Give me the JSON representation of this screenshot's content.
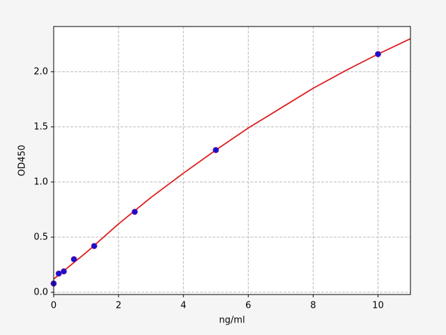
{
  "chart_data": {
    "type": "scatter",
    "xlabel": "ng/ml",
    "ylabel": "OD450",
    "xlim": [
      0,
      11
    ],
    "ylim": [
      -0.02,
      2.41
    ],
    "xticks": [
      0,
      2,
      4,
      6,
      8,
      10
    ],
    "yticks": [
      {
        "value": 0,
        "label": "0.0"
      },
      {
        "value": 0.5,
        "label": "0.5"
      },
      {
        "value": 1,
        "label": "1.0"
      },
      {
        "value": 1.5,
        "label": "1.5"
      },
      {
        "value": 2,
        "label": "2.0"
      }
    ],
    "grid": true,
    "series": [
      {
        "type": "line",
        "color": "#dd1c1c",
        "x": [
          0,
          1,
          2,
          3,
          4,
          5,
          6,
          7,
          8,
          9,
          10,
          11
        ],
        "values": [
          0.12,
          0.36,
          0.62,
          0.86,
          1.08,
          1.29,
          1.49,
          1.67,
          1.85,
          2.01,
          2.16,
          2.3
        ]
      },
      {
        "type": "scatter",
        "color": "#1a0fcc",
        "x": [
          0,
          0.156,
          0.312,
          0.625,
          1.25,
          2.5,
          5,
          10
        ],
        "values": [
          0.08,
          0.17,
          0.19,
          0.3,
          0.42,
          0.73,
          1.29,
          2.16
        ]
      }
    ]
  }
}
